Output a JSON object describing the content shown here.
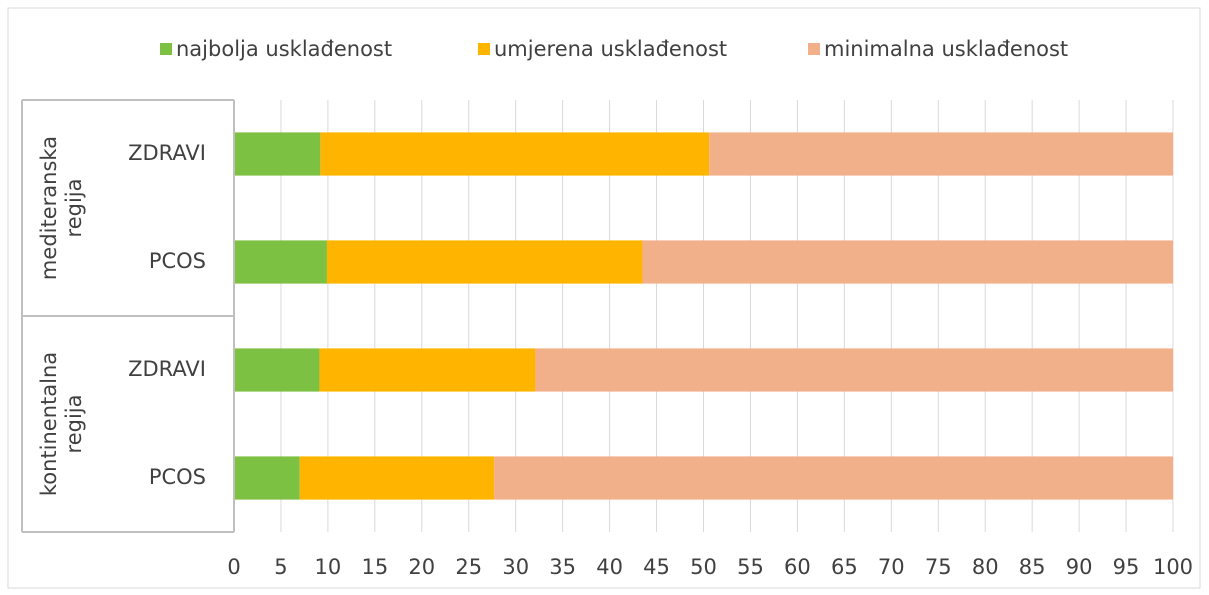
{
  "chart_data": {
    "type": "stacked-bar-horizontal",
    "groups": [
      {
        "label": "mediteranska regija",
        "categories": [
          "ZDRAVI",
          "PCOS"
        ]
      },
      {
        "label": "kontinentalna regija",
        "categories": [
          "ZDRAVI",
          "PCOS"
        ]
      }
    ],
    "series": [
      {
        "name": "najbolja usklađenost",
        "color": "#7dc142",
        "values": [
          9.2,
          9.9,
          9.1,
          7.0
        ]
      },
      {
        "name": "umjerena usklađenost",
        "color": "#ffb400",
        "values": [
          41.4,
          33.6,
          23.0,
          20.7
        ]
      },
      {
        "name": "minimalna usklađenost",
        "color": "#f2b08a",
        "values": [
          49.4,
          56.5,
          67.9,
          72.3
        ]
      }
    ],
    "xlim": [
      0,
      100
    ],
    "xticks": [
      0,
      5,
      10,
      15,
      20,
      25,
      30,
      35,
      40,
      45,
      50,
      55,
      60,
      65,
      70,
      75,
      80,
      85,
      90,
      95,
      100
    ],
    "grid": true,
    "legend": "top"
  }
}
